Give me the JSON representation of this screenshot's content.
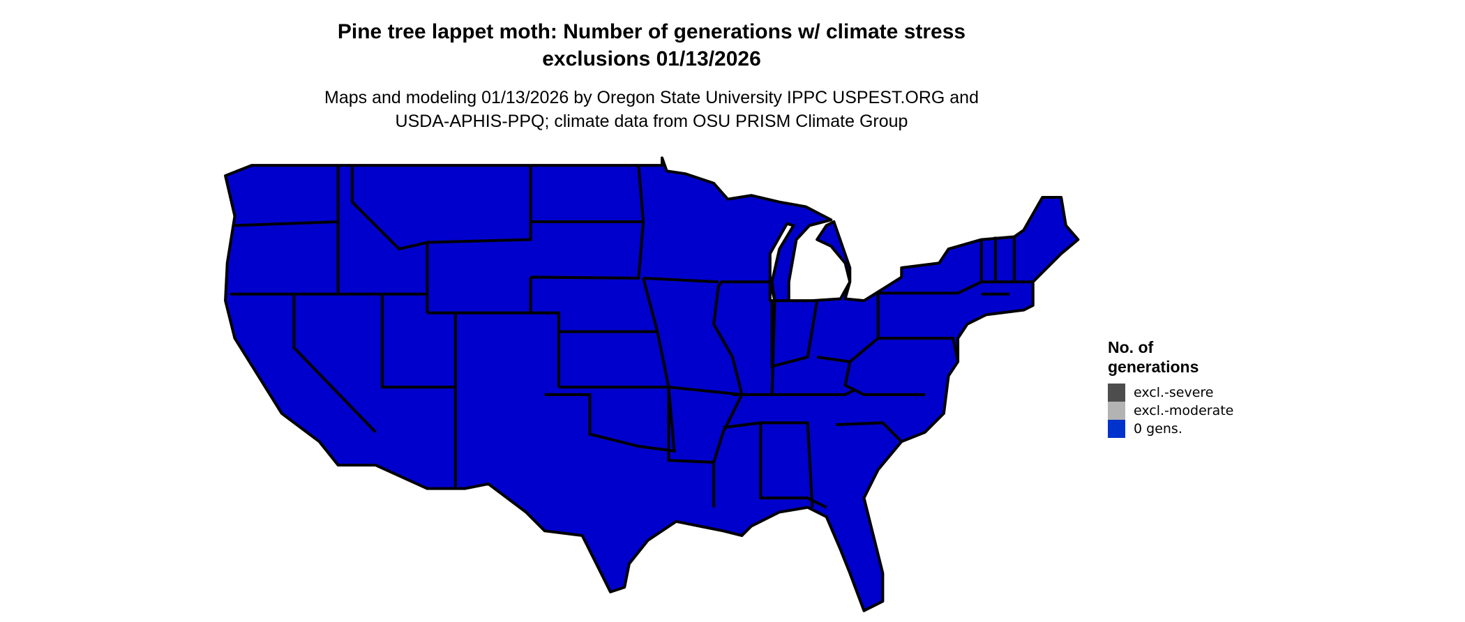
{
  "title": {
    "line1": "Pine tree lappet moth: Number of generations w/ climate stress",
    "line2": "exclusions 01/13/2026"
  },
  "subtitle": {
    "line1": "Maps and modeling 01/13/2026 by Oregon State University IPPC USPEST.ORG and",
    "line2": "USDA-APHIS-PPQ; climate data from OSU PRISM Climate Group"
  },
  "map": {
    "region": "Contiguous United States",
    "fill_color": "#0000cc",
    "border_color": "#000000",
    "displayed_category": "0 gens."
  },
  "legend": {
    "title_line1": "No. of",
    "title_line2": "generations",
    "items": [
      {
        "label": "excl.-severe",
        "color": "#4d4d4d"
      },
      {
        "label": "excl.-moderate",
        "color": "#b3b3b3"
      },
      {
        "label": "0 gens.",
        "color": "#0033cc"
      }
    ]
  }
}
